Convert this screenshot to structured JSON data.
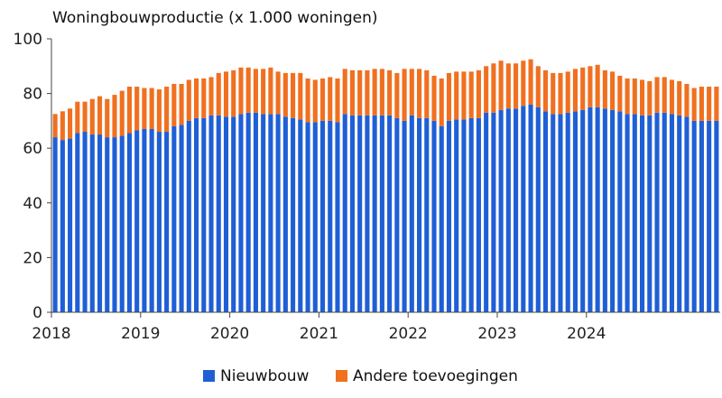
{
  "chart_data": {
    "type": "bar",
    "stacked": true,
    "title": "Woningbouwproductie (x 1.000 woningen)",
    "xlabel": "",
    "ylabel": "",
    "ylim": [
      0,
      100
    ],
    "yticks": [
      0,
      20,
      40,
      60,
      80,
      100
    ],
    "x_tick_labels": [
      "2018",
      "2019",
      "2020",
      "2021",
      "2022",
      "2023",
      "2024"
    ],
    "period_start": "2018-01",
    "period_end": "2024-09",
    "grid": false,
    "legend_position": "bottom",
    "series": [
      {
        "name": "Nieuwbouw",
        "color": "#1f5fd6",
        "values": [
          64.0,
          63.0,
          63.5,
          65.5,
          66.0,
          65.0,
          65.0,
          64.0,
          64.0,
          64.5,
          65.5,
          66.5,
          67.0,
          67.0,
          66.0,
          66.0,
          68.0,
          68.5,
          70.0,
          71.0,
          71.0,
          72.0,
          72.0,
          71.5,
          71.5,
          72.5,
          73.0,
          73.0,
          72.5,
          72.5,
          72.5,
          71.5,
          71.0,
          70.5,
          69.5,
          69.5,
          70.0,
          70.0,
          69.5,
          72.5,
          72.0,
          72.0,
          72.0,
          72.0,
          72.0,
          72.0,
          71.0,
          70.0,
          72.0,
          71.0,
          71.0,
          70.0,
          68.0,
          70.0,
          70.5,
          70.5,
          71.0,
          71.0,
          73.0,
          73.0,
          74.0,
          74.5,
          74.5,
          75.5,
          76.0,
          75.0,
          73.5,
          72.5,
          72.5,
          73.0,
          73.5,
          74.0,
          75.0,
          75.0,
          74.5,
          74.0,
          73.5,
          72.5,
          72.5,
          72.0,
          72.0,
          73.0,
          73.0,
          72.5,
          72.0,
          71.5,
          70.0,
          70.0,
          70.0,
          70.0
        ],
        "stack_note": "bottom"
      },
      {
        "name": "Andere toevoegingen",
        "color": "#f07020",
        "values": [
          8.5,
          10.5,
          11.0,
          11.5,
          11.0,
          13.0,
          14.0,
          14.0,
          15.5,
          16.5,
          17.0,
          16.0,
          15.0,
          15.0,
          15.5,
          16.5,
          15.5,
          15.0,
          15.0,
          14.5,
          14.5,
          14.0,
          15.5,
          16.5,
          17.0,
          17.0,
          16.5,
          16.0,
          16.5,
          17.0,
          15.5,
          16.0,
          16.5,
          17.0,
          16.0,
          15.5,
          15.5,
          16.0,
          16.0,
          16.5,
          16.5,
          16.5,
          16.5,
          17.0,
          17.0,
          16.5,
          16.5,
          19.0,
          17.0,
          18.0,
          17.5,
          16.5,
          17.5,
          17.5,
          17.5,
          17.5,
          17.0,
          17.5,
          17.0,
          18.0,
          18.0,
          16.5,
          16.5,
          16.5,
          16.5,
          15.0,
          15.0,
          15.0,
          15.0,
          15.0,
          15.5,
          15.5,
          15.0,
          15.5,
          14.0,
          14.0,
          13.0,
          13.0,
          13.0,
          13.0,
          12.5,
          13.0,
          13.0,
          12.5,
          12.5,
          12.0,
          12.0,
          12.5,
          12.5,
          12.5
        ]
      }
    ]
  }
}
